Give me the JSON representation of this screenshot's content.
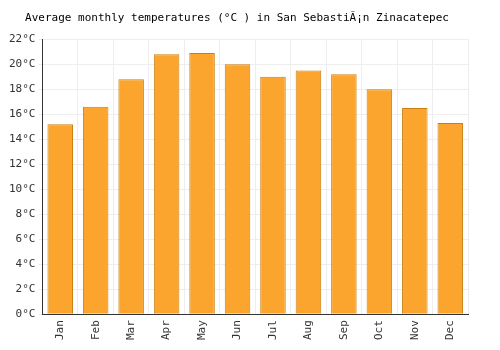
{
  "chart_data": {
    "type": "bar",
    "title": "Average monthly temperatures (°C ) in San SebastiÃ¡n Zinacatepec",
    "categories": [
      "Jan",
      "Feb",
      "Mar",
      "Apr",
      "May",
      "Jun",
      "Jul",
      "Aug",
      "Sep",
      "Oct",
      "Nov",
      "Dec"
    ],
    "values": [
      15.2,
      16.6,
      18.8,
      20.8,
      20.9,
      20.0,
      19.0,
      19.5,
      19.2,
      18.0,
      16.5,
      15.3
    ],
    "color": "#fba52e",
    "ylim": [
      0,
      22
    ],
    "yticks": [
      {
        "value": 0,
        "label": "0°C"
      },
      {
        "value": 2,
        "label": "2°C"
      },
      {
        "value": 4,
        "label": "4°C"
      },
      {
        "value": 6,
        "label": "6°C"
      },
      {
        "value": 8,
        "label": "8°C"
      },
      {
        "value": 10,
        "label": "10°C"
      },
      {
        "value": 12,
        "label": "12°C"
      },
      {
        "value": 14,
        "label": "14°C"
      },
      {
        "value": 16,
        "label": "16°C"
      },
      {
        "value": 18,
        "label": "18°C"
      },
      {
        "value": 20,
        "label": "20°C"
      },
      {
        "value": 22,
        "label": "22°C"
      }
    ],
    "grid": true
  }
}
